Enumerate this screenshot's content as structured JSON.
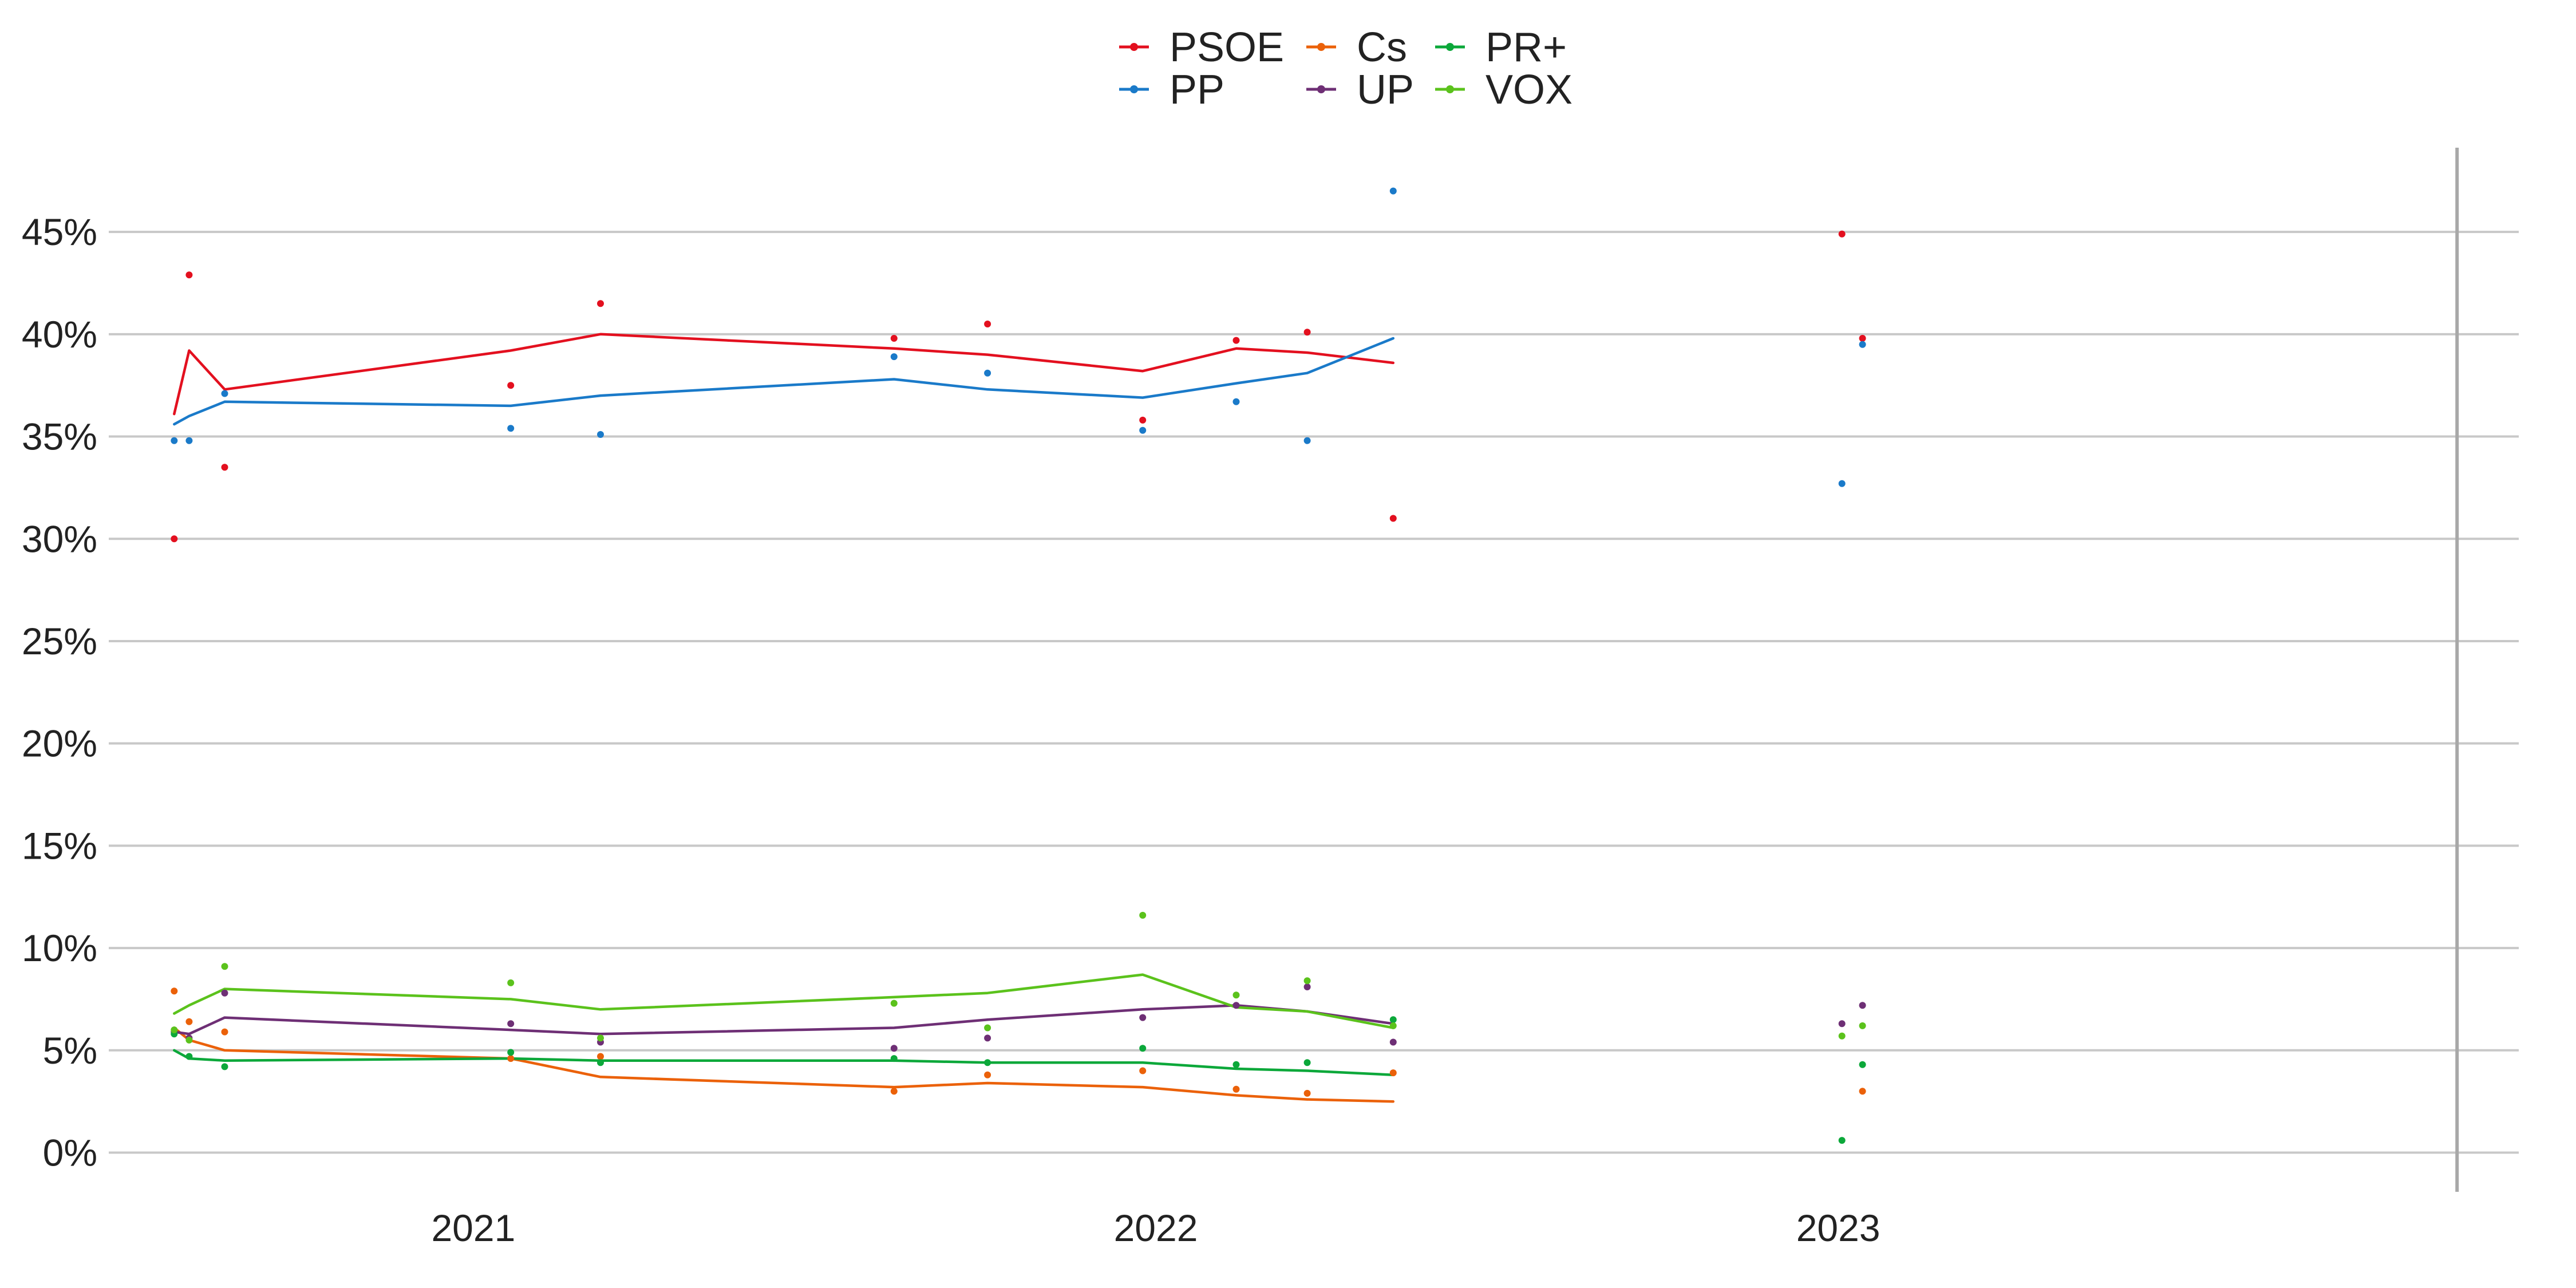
{
  "chart_data": {
    "type": "line",
    "title": "",
    "xlabel": "",
    "ylabel": "",
    "ylim": [
      -2.0,
      49.2
    ],
    "xlim": [
      "2020-06-20",
      "2023-12-31"
    ],
    "y_ticks": [
      0,
      5,
      10,
      15,
      20,
      25,
      30,
      35,
      40,
      45
    ],
    "y_tick_labels": [
      "0%",
      "5%",
      "10%",
      "15%",
      "20%",
      "25%",
      "30%",
      "35%",
      "40%",
      "45%"
    ],
    "x_ticks": [
      "2021-01-01",
      "2022-01-01",
      "2023-01-01"
    ],
    "x_tick_labels": [
      "2021",
      "2022",
      "2023"
    ],
    "grid": "horizontal",
    "legend_position": "top-center",
    "vertical_marker": "2023-11-28",
    "series": [
      {
        "name": "PSOE",
        "color": "#e3101f",
        "points": [
          {
            "x": "2020-07-25",
            "y": 30.0
          },
          {
            "x": "2020-08-02",
            "y": 42.9
          },
          {
            "x": "2020-08-21",
            "y": 33.5
          },
          {
            "x": "2021-01-21",
            "y": 37.5
          },
          {
            "x": "2021-03-10",
            "y": 41.5
          },
          {
            "x": "2021-08-14",
            "y": 39.8
          },
          {
            "x": "2021-10-03",
            "y": 40.5
          },
          {
            "x": "2021-12-25",
            "y": 35.8
          },
          {
            "x": "2022-02-13",
            "y": 39.7
          },
          {
            "x": "2022-03-23",
            "y": 40.1
          },
          {
            "x": "2022-05-08",
            "y": 31.0
          },
          {
            "x": "2023-01-03",
            "y": 44.9
          },
          {
            "x": "2023-01-14",
            "y": 39.8
          }
        ],
        "trend": [
          {
            "x": "2020-07-25",
            "y": 36.1
          },
          {
            "x": "2020-08-02",
            "y": 39.2
          },
          {
            "x": "2020-08-21",
            "y": 37.3
          },
          {
            "x": "2021-01-21",
            "y": 39.2
          },
          {
            "x": "2021-03-10",
            "y": 40.0
          },
          {
            "x": "2021-08-14",
            "y": 39.3
          },
          {
            "x": "2021-10-03",
            "y": 39.0
          },
          {
            "x": "2021-12-25",
            "y": 38.2
          },
          {
            "x": "2022-02-13",
            "y": 39.3
          },
          {
            "x": "2022-03-23",
            "y": 39.1
          },
          {
            "x": "2022-05-08",
            "y": 38.6
          }
        ]
      },
      {
        "name": "PP",
        "color": "#1a7ac9",
        "points": [
          {
            "x": "2020-07-25",
            "y": 34.8
          },
          {
            "x": "2020-08-02",
            "y": 34.8
          },
          {
            "x": "2020-08-21",
            "y": 37.1
          },
          {
            "x": "2021-01-21",
            "y": 35.4
          },
          {
            "x": "2021-03-10",
            "y": 35.1
          },
          {
            "x": "2021-08-14",
            "y": 38.9
          },
          {
            "x": "2021-10-03",
            "y": 38.1
          },
          {
            "x": "2021-12-25",
            "y": 35.3
          },
          {
            "x": "2022-02-13",
            "y": 36.7
          },
          {
            "x": "2022-03-23",
            "y": 34.8
          },
          {
            "x": "2022-05-08",
            "y": 47.0
          },
          {
            "x": "2023-01-03",
            "y": 32.7
          },
          {
            "x": "2023-01-14",
            "y": 39.5
          }
        ],
        "trend": [
          {
            "x": "2020-07-25",
            "y": 35.6
          },
          {
            "x": "2020-08-02",
            "y": 36.0
          },
          {
            "x": "2020-08-21",
            "y": 36.7
          },
          {
            "x": "2021-01-21",
            "y": 36.5
          },
          {
            "x": "2021-03-10",
            "y": 37.0
          },
          {
            "x": "2021-08-14",
            "y": 37.8
          },
          {
            "x": "2021-10-03",
            "y": 37.3
          },
          {
            "x": "2021-12-25",
            "y": 36.9
          },
          {
            "x": "2022-02-13",
            "y": 37.6
          },
          {
            "x": "2022-03-23",
            "y": 38.1
          },
          {
            "x": "2022-05-08",
            "y": 39.8
          }
        ]
      },
      {
        "name": "Cs",
        "color": "#eb6109",
        "points": [
          {
            "x": "2020-07-25",
            "y": 7.9
          },
          {
            "x": "2020-08-02",
            "y": 6.4
          },
          {
            "x": "2020-08-21",
            "y": 5.9
          },
          {
            "x": "2021-01-21",
            "y": 4.6
          },
          {
            "x": "2021-03-10",
            "y": 4.7
          },
          {
            "x": "2021-08-14",
            "y": 3.0
          },
          {
            "x": "2021-10-03",
            "y": 3.8
          },
          {
            "x": "2021-12-25",
            "y": 4.0
          },
          {
            "x": "2022-02-13",
            "y": 3.1
          },
          {
            "x": "2022-03-23",
            "y": 2.9
          },
          {
            "x": "2022-05-08",
            "y": 3.9
          },
          {
            "x": "2023-01-14",
            "y": 3.0
          }
        ],
        "trend": [
          {
            "x": "2020-07-25",
            "y": 6.1
          },
          {
            "x": "2020-08-02",
            "y": 5.5
          },
          {
            "x": "2020-08-21",
            "y": 5.0
          },
          {
            "x": "2021-01-21",
            "y": 4.6
          },
          {
            "x": "2021-03-10",
            "y": 3.7
          },
          {
            "x": "2021-08-14",
            "y": 3.2
          },
          {
            "x": "2021-10-03",
            "y": 3.4
          },
          {
            "x": "2021-12-25",
            "y": 3.2
          },
          {
            "x": "2022-02-13",
            "y": 2.8
          },
          {
            "x": "2022-03-23",
            "y": 2.6
          },
          {
            "x": "2022-05-08",
            "y": 2.5
          }
        ]
      },
      {
        "name": "UP",
        "color": "#6e2f75",
        "points": [
          {
            "x": "2020-07-25",
            "y": 5.9
          },
          {
            "x": "2020-08-02",
            "y": 5.6
          },
          {
            "x": "2020-08-21",
            "y": 7.8
          },
          {
            "x": "2021-01-21",
            "y": 6.3
          },
          {
            "x": "2021-03-10",
            "y": 5.4
          },
          {
            "x": "2021-08-14",
            "y": 5.1
          },
          {
            "x": "2021-10-03",
            "y": 5.6
          },
          {
            "x": "2021-12-25",
            "y": 6.6
          },
          {
            "x": "2022-02-13",
            "y": 7.2
          },
          {
            "x": "2022-03-23",
            "y": 8.1
          },
          {
            "x": "2022-05-08",
            "y": 5.4
          },
          {
            "x": "2023-01-03",
            "y": 6.3
          },
          {
            "x": "2023-01-14",
            "y": 7.2
          }
        ],
        "trend": [
          {
            "x": "2020-07-25",
            "y": 5.9
          },
          {
            "x": "2020-08-02",
            "y": 5.8
          },
          {
            "x": "2020-08-21",
            "y": 6.6
          },
          {
            "x": "2021-01-21",
            "y": 6.0
          },
          {
            "x": "2021-03-10",
            "y": 5.8
          },
          {
            "x": "2021-08-14",
            "y": 6.1
          },
          {
            "x": "2021-10-03",
            "y": 6.5
          },
          {
            "x": "2021-12-25",
            "y": 7.0
          },
          {
            "x": "2022-02-13",
            "y": 7.2
          },
          {
            "x": "2022-03-23",
            "y": 6.9
          },
          {
            "x": "2022-05-08",
            "y": 6.3
          }
        ]
      },
      {
        "name": "PR+",
        "color": "#0ca83a",
        "points": [
          {
            "x": "2020-07-25",
            "y": 5.8
          },
          {
            "x": "2020-08-02",
            "y": 4.7
          },
          {
            "x": "2020-08-21",
            "y": 4.2
          },
          {
            "x": "2021-01-21",
            "y": 4.9
          },
          {
            "x": "2021-03-10",
            "y": 4.4
          },
          {
            "x": "2021-08-14",
            "y": 4.6
          },
          {
            "x": "2021-10-03",
            "y": 4.4
          },
          {
            "x": "2021-12-25",
            "y": 5.1
          },
          {
            "x": "2022-02-13",
            "y": 4.3
          },
          {
            "x": "2022-03-23",
            "y": 4.4
          },
          {
            "x": "2022-05-08",
            "y": 6.5
          },
          {
            "x": "2023-01-03",
            "y": 0.6
          },
          {
            "x": "2023-01-14",
            "y": 4.3
          }
        ],
        "trend": [
          {
            "x": "2020-07-25",
            "y": 5.0
          },
          {
            "x": "2020-08-02",
            "y": 4.6
          },
          {
            "x": "2020-08-21",
            "y": 4.5
          },
          {
            "x": "2021-01-21",
            "y": 4.6
          },
          {
            "x": "2021-03-10",
            "y": 4.5
          },
          {
            "x": "2021-08-14",
            "y": 4.5
          },
          {
            "x": "2021-10-03",
            "y": 4.4
          },
          {
            "x": "2021-12-25",
            "y": 4.4
          },
          {
            "x": "2022-02-13",
            "y": 4.1
          },
          {
            "x": "2022-03-23",
            "y": 4.0
          },
          {
            "x": "2022-05-08",
            "y": 3.8
          }
        ]
      },
      {
        "name": "VOX",
        "color": "#5bc21c",
        "points": [
          {
            "x": "2020-07-25",
            "y": 6.0
          },
          {
            "x": "2020-08-02",
            "y": 5.5
          },
          {
            "x": "2020-08-21",
            "y": 9.1
          },
          {
            "x": "2021-01-21",
            "y": 8.3
          },
          {
            "x": "2021-03-10",
            "y": 5.6
          },
          {
            "x": "2021-08-14",
            "y": 7.3
          },
          {
            "x": "2021-10-03",
            "y": 6.1
          },
          {
            "x": "2021-12-25",
            "y": 11.6
          },
          {
            "x": "2022-02-13",
            "y": 7.7
          },
          {
            "x": "2022-03-23",
            "y": 8.4
          },
          {
            "x": "2022-05-08",
            "y": 6.2
          },
          {
            "x": "2023-01-03",
            "y": 5.7
          },
          {
            "x": "2023-01-14",
            "y": 6.2
          }
        ],
        "trend": [
          {
            "x": "2020-07-25",
            "y": 6.8
          },
          {
            "x": "2020-08-02",
            "y": 7.2
          },
          {
            "x": "2020-08-21",
            "y": 8.0
          },
          {
            "x": "2021-01-21",
            "y": 7.5
          },
          {
            "x": "2021-03-10",
            "y": 7.0
          },
          {
            "x": "2021-08-14",
            "y": 7.6
          },
          {
            "x": "2021-10-03",
            "y": 7.8
          },
          {
            "x": "2021-12-25",
            "y": 8.7
          },
          {
            "x": "2022-02-13",
            "y": 7.1
          },
          {
            "x": "2022-03-23",
            "y": 6.9
          },
          {
            "x": "2022-05-08",
            "y": 6.1
          }
        ]
      }
    ]
  },
  "legend": {
    "items": [
      {
        "label": "PSOE",
        "color": "#e3101f"
      },
      {
        "label": "PP",
        "color": "#1a7ac9"
      },
      {
        "label": "Cs",
        "color": "#eb6109"
      },
      {
        "label": "UP",
        "color": "#6e2f75"
      },
      {
        "label": "PR+",
        "color": "#0ca83a"
      },
      {
        "label": "VOX",
        "color": "#5bc21c"
      }
    ]
  }
}
